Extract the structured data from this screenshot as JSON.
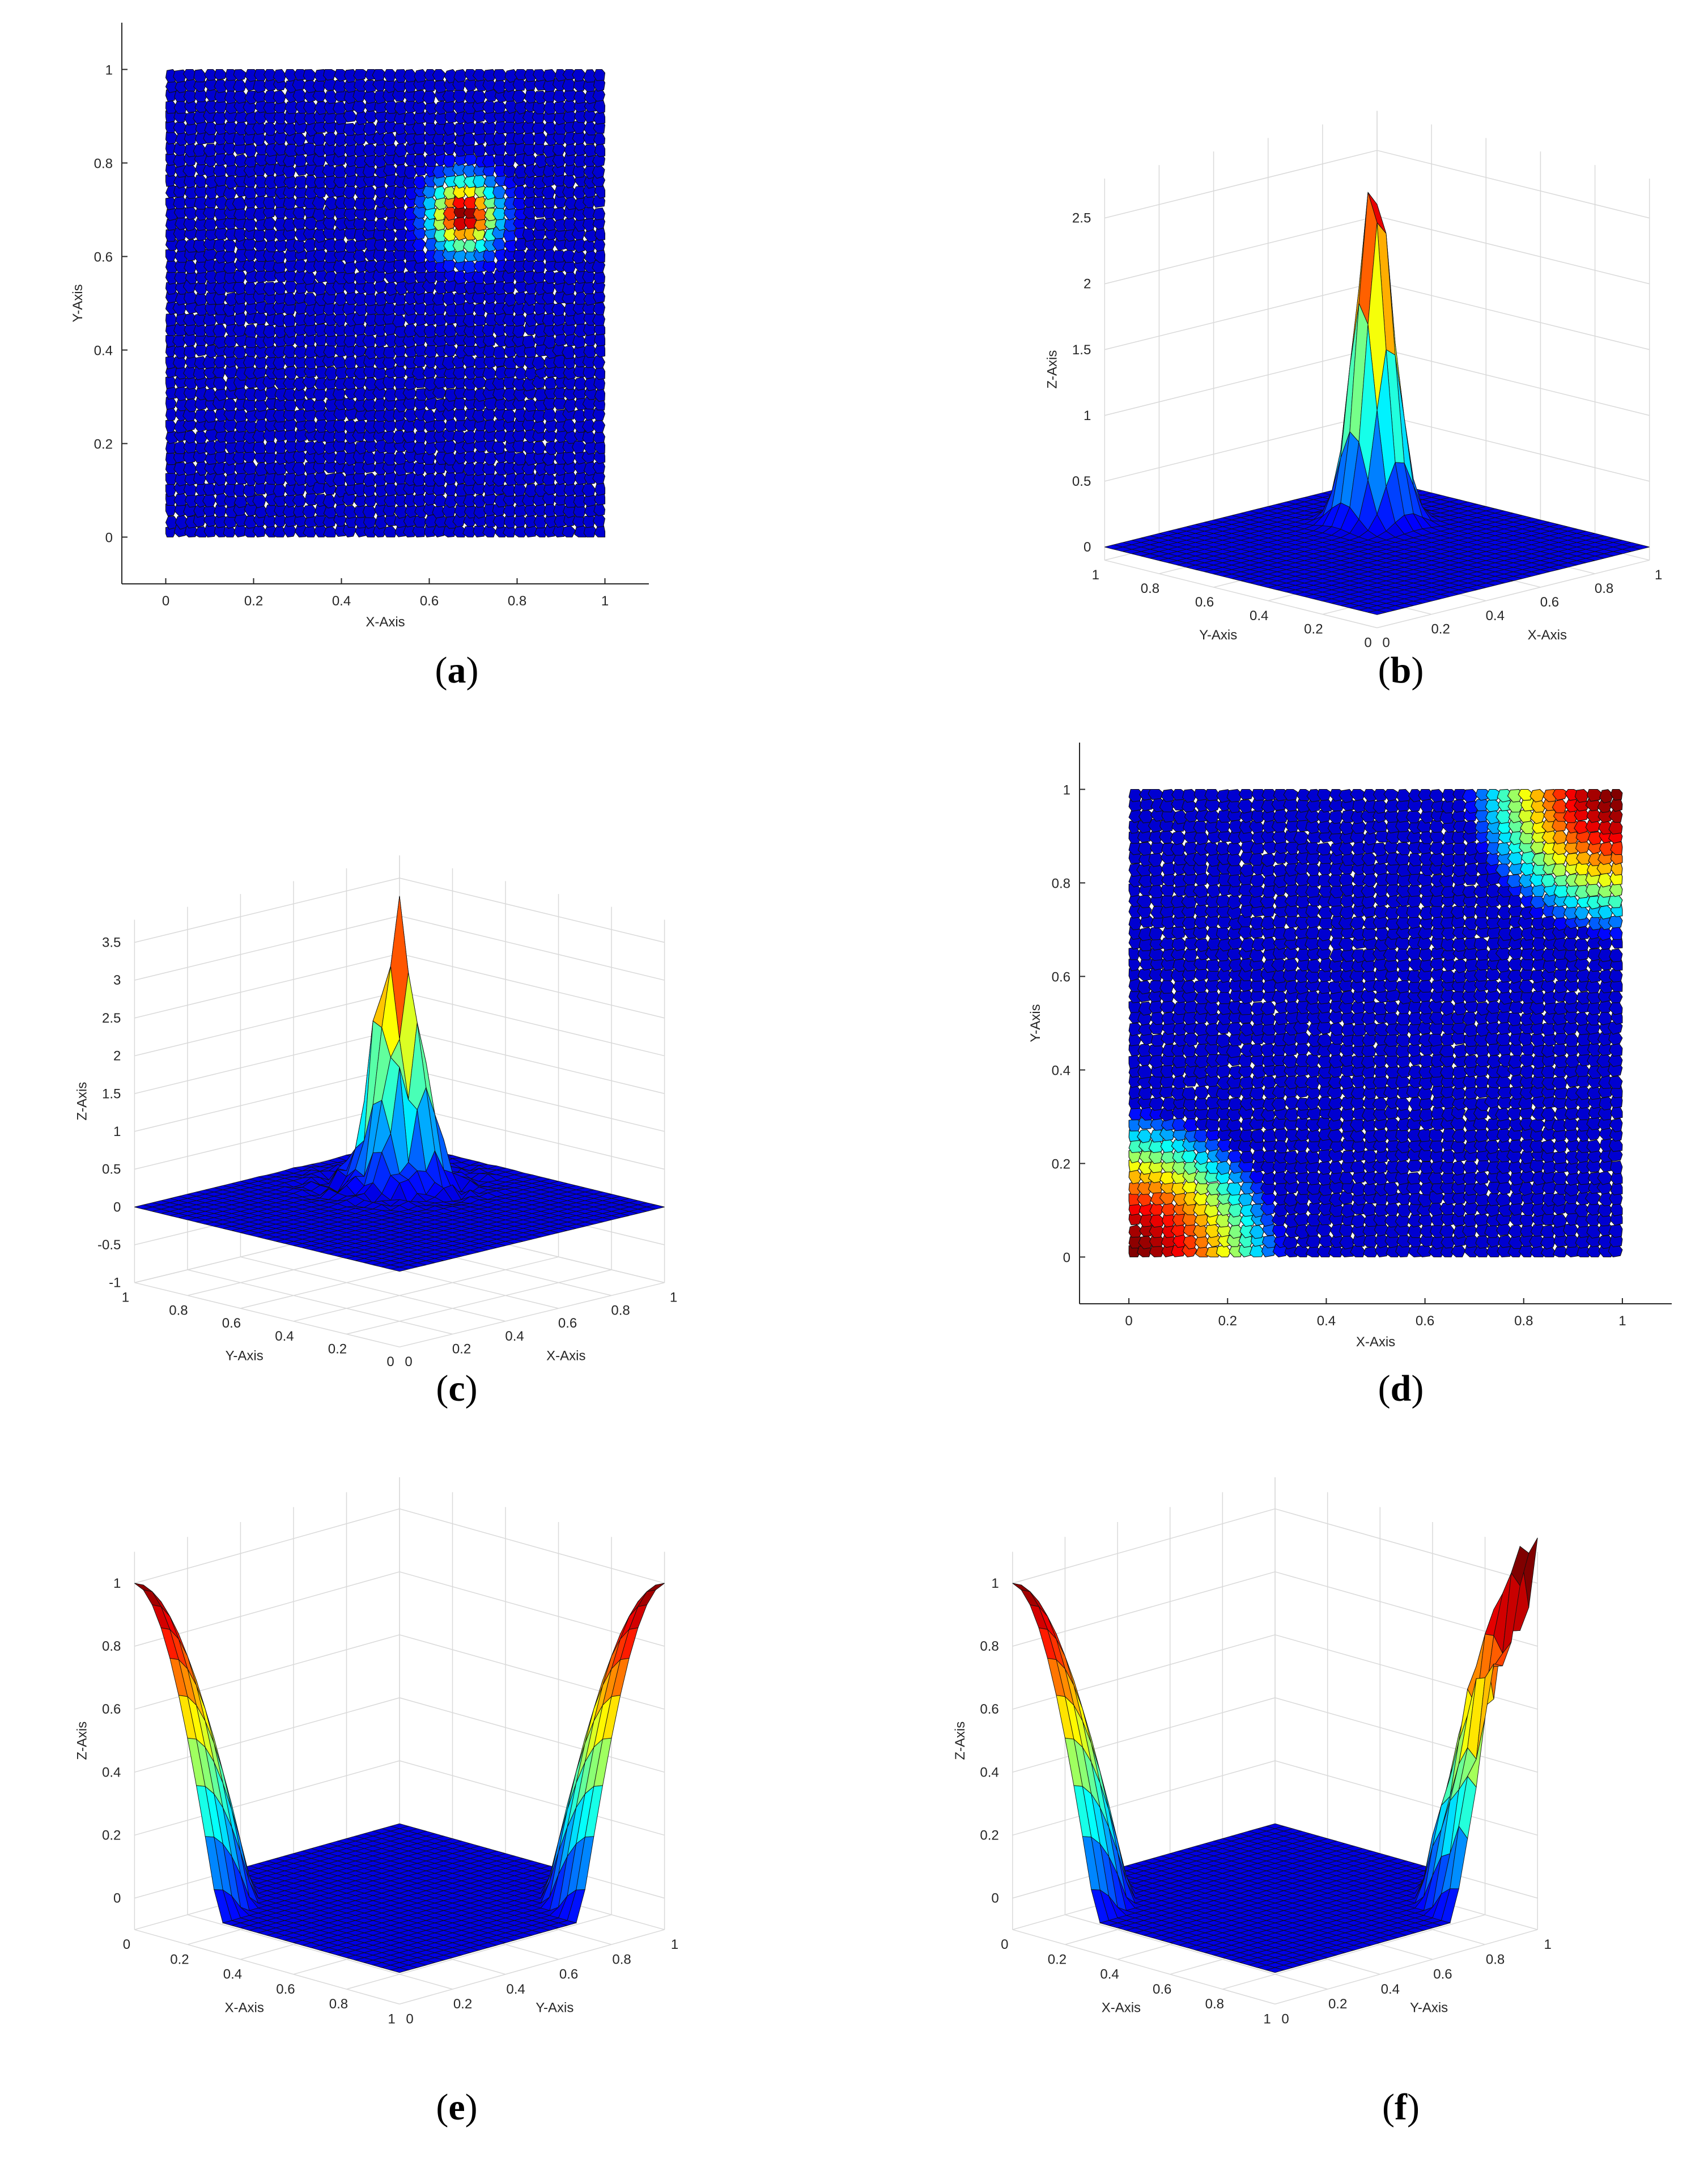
{
  "chart_data": [
    {
      "panel": "(a)",
      "label": "a",
      "type": "heatmap",
      "view": "2d",
      "xlabel": "X-Axis",
      "ylabel": "Y-Axis",
      "xlim": [
        -0.1,
        1.1
      ],
      "ylim": [
        -0.1,
        1.1
      ],
      "xticks": [
        0,
        0.2,
        0.4,
        0.6,
        0.8,
        1
      ],
      "yticks": [
        0,
        0.2,
        0.4,
        0.6,
        0.8,
        1
      ],
      "xtick_labels": [
        "0",
        "0.2",
        "0.4",
        "0.6",
        "0.8",
        "1"
      ],
      "ytick_labels": [
        "0",
        "0.2",
        "0.4",
        "0.6",
        "0.8",
        "1"
      ],
      "colormap": "jet",
      "mesh": "polygonal",
      "field": {
        "shape": "gaussian",
        "center": [
          0.68,
          0.69
        ],
        "sigma": 0.05,
        "peak": 2.65
      }
    },
    {
      "panel": "(b)",
      "label": "b",
      "type": "surface3d",
      "xlabel": "X-Axis",
      "ylabel": "Y-Axis",
      "zlabel": "Z-Axis",
      "xlim": [
        0,
        1
      ],
      "ylim": [
        0,
        1
      ],
      "zlim": [
        -0.1,
        2.8
      ],
      "xticks": [
        0,
        0.2,
        0.4,
        0.6,
        0.8,
        1
      ],
      "yticks": [
        0,
        0.2,
        0.4,
        0.6,
        0.8,
        1
      ],
      "zticks": [
        0,
        0.5,
        1,
        1.5,
        2,
        2.5
      ],
      "xtick_labels": [
        "0",
        "0.2",
        "0.4",
        "0.6",
        "0.8",
        "1"
      ],
      "ytick_labels": [
        "0",
        "0.2",
        "0.4",
        "0.6",
        "0.8",
        "1"
      ],
      "ztick_labels": [
        "0",
        "0.5",
        "1",
        "1.5",
        "2",
        "2.5"
      ],
      "colormap": "jet",
      "field": {
        "shape": "gaussian",
        "center": [
          0.68,
          0.69
        ],
        "sigma": 0.05,
        "peak": 2.65
      }
    },
    {
      "panel": "(c)",
      "label": "c",
      "type": "surface3d",
      "xlabel": "X-Axis",
      "ylabel": "Y-Axis",
      "zlabel": "Z-Axis",
      "xlim": [
        0,
        1
      ],
      "ylim": [
        0,
        1
      ],
      "zlim": [
        -1,
        3.8
      ],
      "xticks": [
        0,
        0.2,
        0.4,
        0.6,
        0.8,
        1
      ],
      "yticks": [
        0,
        0.2,
        0.4,
        0.6,
        0.8,
        1
      ],
      "zticks": [
        -1,
        -0.5,
        0,
        0.5,
        1,
        1.5,
        2,
        2.5,
        3,
        3.5
      ],
      "xtick_labels": [
        "0",
        "0.2",
        "0.4",
        "0.6",
        "0.8",
        "1"
      ],
      "ytick_labels": [
        "0",
        "0.2",
        "0.4",
        "0.6",
        "0.8",
        "1"
      ],
      "ztick_labels": [
        "-1",
        "-0.5",
        "0",
        "0.5",
        "1",
        "1.5",
        "2",
        "2.5",
        "3",
        "3.5"
      ],
      "colormap": "jet",
      "field": {
        "shape": "noisy-gaussian",
        "center": [
          0.68,
          0.69
        ],
        "sigma": 0.06,
        "peak": 3.7
      }
    },
    {
      "panel": "(d)",
      "label": "d",
      "type": "heatmap",
      "view": "2d",
      "xlabel": "X-Axis",
      "ylabel": "Y-Axis",
      "xlim": [
        -0.1,
        1.1
      ],
      "ylim": [
        -0.1,
        1.1
      ],
      "xticks": [
        0,
        0.2,
        0.4,
        0.6,
        0.8,
        1
      ],
      "yticks": [
        0,
        0.2,
        0.4,
        0.6,
        0.8,
        1
      ],
      "xtick_labels": [
        "0",
        "0.2",
        "0.4",
        "0.6",
        "0.8",
        "1"
      ],
      "ytick_labels": [
        "0",
        "0.2",
        "0.4",
        "0.6",
        "0.8",
        "1"
      ],
      "colormap": "jet",
      "mesh": "polygonal",
      "field": {
        "shape": "corners",
        "corners": [
          [
            0,
            0
          ],
          [
            1,
            1
          ]
        ],
        "radius": 0.32,
        "peak": 1
      }
    },
    {
      "panel": "(e)",
      "label": "e",
      "type": "surface3d",
      "xlabel": "X-Axis",
      "ylabel": "Y-Axis",
      "zlabel": "Z-Axis",
      "xlim": [
        0,
        1
      ],
      "ylim": [
        0,
        1
      ],
      "zlim": [
        -0.1,
        1.1
      ],
      "xticks": [
        0,
        0.2,
        0.4,
        0.6,
        0.8,
        1
      ],
      "yticks": [
        0,
        0.2,
        0.4,
        0.6,
        0.8,
        1
      ],
      "zticks": [
        0,
        0.2,
        0.4,
        0.6,
        0.8,
        1
      ],
      "xtick_labels": [
        "0",
        "0.2",
        "0.4",
        "0.6",
        "0.8",
        "1"
      ],
      "ytick_labels": [
        "0",
        "0.2",
        "0.4",
        "0.6",
        "0.8",
        "1"
      ],
      "ztick_labels": [
        "0",
        "0.2",
        "0.4",
        "0.6",
        "0.8",
        "1"
      ],
      "colormap": "jet",
      "field": {
        "shape": "corners",
        "corners": [
          [
            0,
            0
          ],
          [
            1,
            1
          ]
        ],
        "radius": 0.32,
        "peak": 1
      }
    },
    {
      "panel": "(f)",
      "label": "f",
      "type": "surface3d",
      "xlabel": "X-Axis",
      "ylabel": "Y-Axis",
      "zlabel": "Z-Axis",
      "xlim": [
        0,
        1
      ],
      "ylim": [
        0,
        1
      ],
      "zlim": [
        -0.1,
        1.1
      ],
      "xticks": [
        0,
        0.2,
        0.4,
        0.6,
        0.8,
        1
      ],
      "yticks": [
        0,
        0.2,
        0.4,
        0.6,
        0.8,
        1
      ],
      "zticks": [
        0,
        0.2,
        0.4,
        0.6,
        0.8,
        1
      ],
      "xtick_labels": [
        "0",
        "0.2",
        "0.4",
        "0.6",
        "0.8",
        "1"
      ],
      "ytick_labels": [
        "0",
        "0.2",
        "0.4",
        "0.6",
        "0.8",
        "1"
      ],
      "ztick_labels": [
        "0",
        "0.2",
        "0.4",
        "0.6",
        "0.8",
        "1"
      ],
      "colormap": "jet",
      "field": {
        "shape": "noisy-corners",
        "corners": [
          [
            0,
            0
          ],
          [
            1,
            1
          ]
        ],
        "radius": 0.32,
        "peak": 1
      }
    }
  ]
}
